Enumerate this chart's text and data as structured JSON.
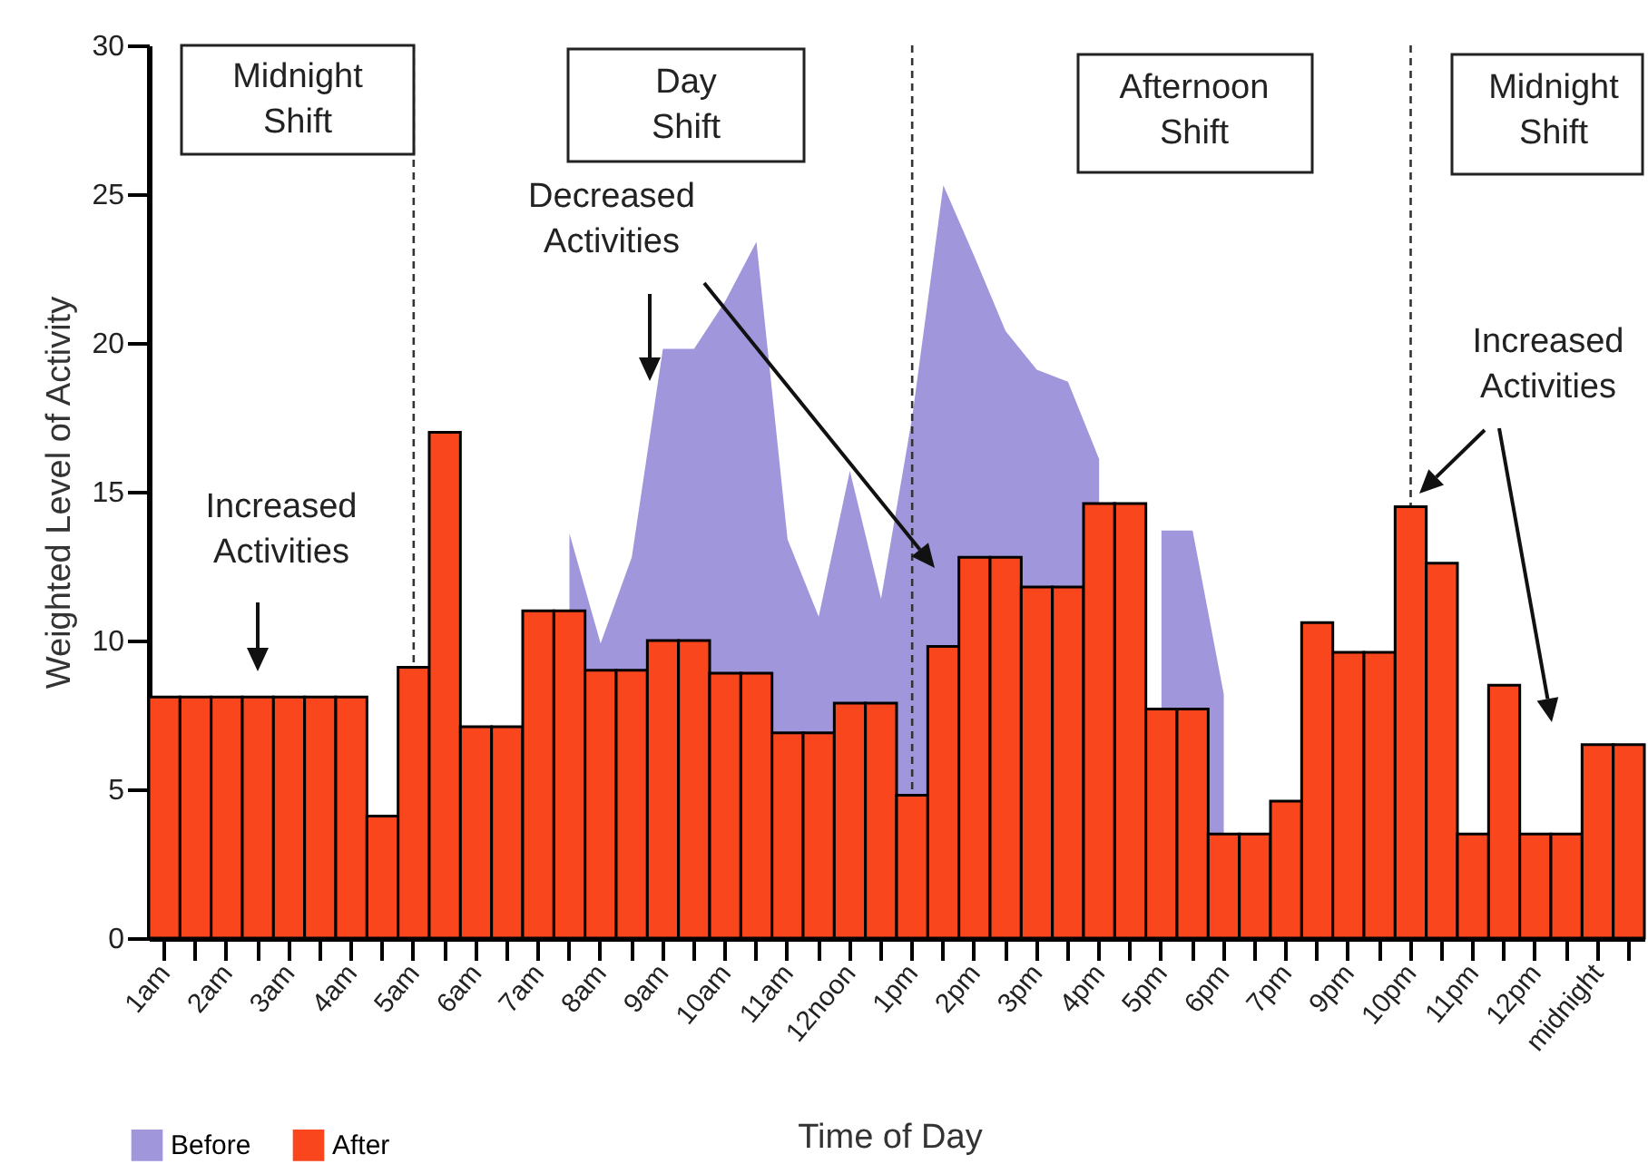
{
  "chart_data": {
    "type": "bar",
    "xlabel": "Time of Day",
    "ylabel": "Weighted Level of Activity",
    "categories": [
      "1am",
      null,
      "2am",
      null,
      "3am",
      null,
      "4am",
      null,
      "5am",
      null,
      "6am",
      null,
      "7am",
      null,
      "8am",
      null,
      "9am",
      null,
      "10am",
      null,
      "11am",
      null,
      "12noon",
      null,
      "1pm",
      null,
      "2pm",
      null,
      "3pm",
      null,
      "4pm",
      null,
      "5pm",
      null,
      "6pm",
      null,
      "7pm",
      null,
      "9pm",
      null,
      "10pm",
      null,
      "11pm",
      null,
      "12pm",
      null,
      "midnight",
      null
    ],
    "ylim": [
      0,
      30
    ],
    "yticks": [
      0,
      5,
      10,
      15,
      20,
      25,
      30
    ],
    "series": [
      {
        "name": "Before",
        "type": "area",
        "color": "#a096dc",
        "values": [
          null,
          null,
          null,
          null,
          null,
          null,
          null,
          null,
          null,
          null,
          null,
          null,
          null,
          13.6,
          9.9,
          12.8,
          19.8,
          19.8,
          21.4,
          23.4,
          13.4,
          10.8,
          15.7,
          11.4,
          17.5,
          25.3,
          22.9,
          20.4,
          19.1,
          18.7,
          16.1,
          null,
          13.7,
          13.7,
          8.2,
          null,
          null,
          null,
          null,
          null,
          null,
          null,
          null,
          null,
          null,
          null,
          null,
          null
        ]
      },
      {
        "name": "After",
        "color": "#f9461c",
        "values": [
          8.1,
          8.1,
          8.1,
          8.1,
          8.1,
          8.1,
          8.1,
          4.1,
          9.1,
          17.0,
          7.1,
          7.1,
          11.0,
          11.0,
          9.0,
          9.0,
          10.0,
          10.0,
          8.9,
          8.9,
          6.9,
          6.9,
          7.9,
          7.9,
          4.8,
          9.8,
          12.8,
          12.8,
          11.8,
          11.8,
          14.6,
          14.6,
          7.7,
          7.7,
          3.5,
          3.5,
          4.6,
          10.6,
          9.6,
          9.6,
          14.5,
          12.6,
          3.5,
          8.5,
          3.5,
          3.5,
          6.5,
          6.5
        ]
      }
    ],
    "ref_lines": [
      {
        "axis": "x",
        "value": "5am",
        "line_style": "dashed"
      },
      {
        "axis": "x",
        "value": "1pm",
        "line_style": "dashed"
      },
      {
        "axis": "x",
        "value": "10pm",
        "line_style": "dashed"
      }
    ],
    "annotations": [
      "Midnight Shift",
      "Day Shift",
      "Afternoon Shift",
      "Midnight Shift",
      "Increased Activities",
      "Decreased Activities",
      "Increased Activities"
    ],
    "legend": "bottom left",
    "grid": false
  }
}
